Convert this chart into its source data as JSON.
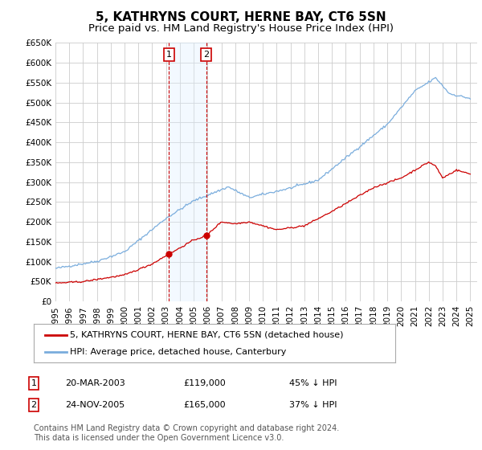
{
  "title": "5, KATHRYNS COURT, HERNE BAY, CT6 5SN",
  "subtitle": "Price paid vs. HM Land Registry's House Price Index (HPI)",
  "ylim": [
    0,
    650000
  ],
  "yticks": [
    0,
    50000,
    100000,
    150000,
    200000,
    250000,
    300000,
    350000,
    400000,
    450000,
    500000,
    550000,
    600000,
    650000
  ],
  "ytick_labels": [
    "£0",
    "£50K",
    "£100K",
    "£150K",
    "£200K",
    "£250K",
    "£300K",
    "£350K",
    "£400K",
    "£450K",
    "£500K",
    "£550K",
    "£600K",
    "£650K"
  ],
  "xlim_start": 1995.0,
  "xlim_end": 2025.5,
  "sale1_date": 2003.22,
  "sale1_price": 119000,
  "sale1_label": "20-MAR-2003",
  "sale1_text": "£119,000",
  "sale1_note": "45% ↓ HPI",
  "sale2_date": 2005.9,
  "sale2_price": 165000,
  "sale2_label": "24-NOV-2005",
  "sale2_text": "£165,000",
  "sale2_note": "37% ↓ HPI",
  "legend_property": "5, KATHRYNS COURT, HERNE BAY, CT6 5SN (detached house)",
  "legend_hpi": "HPI: Average price, detached house, Canterbury",
  "footer": "Contains HM Land Registry data © Crown copyright and database right 2024.\nThis data is licensed under the Open Government Licence v3.0.",
  "line_property_color": "#cc0000",
  "line_hpi_color": "#7aaddd",
  "shading_color": "#ddeeff",
  "vline_color": "#cc0000",
  "box_color": "#cc0000",
  "grid_color": "#cccccc",
  "background_color": "#ffffff",
  "title_fontsize": 11,
  "subtitle_fontsize": 9.5,
  "tick_fontsize": 7.5,
  "legend_fontsize": 8,
  "footer_fontsize": 7,
  "numbers_y": 620000,
  "box_label_1": "1",
  "box_label_2": "2"
}
